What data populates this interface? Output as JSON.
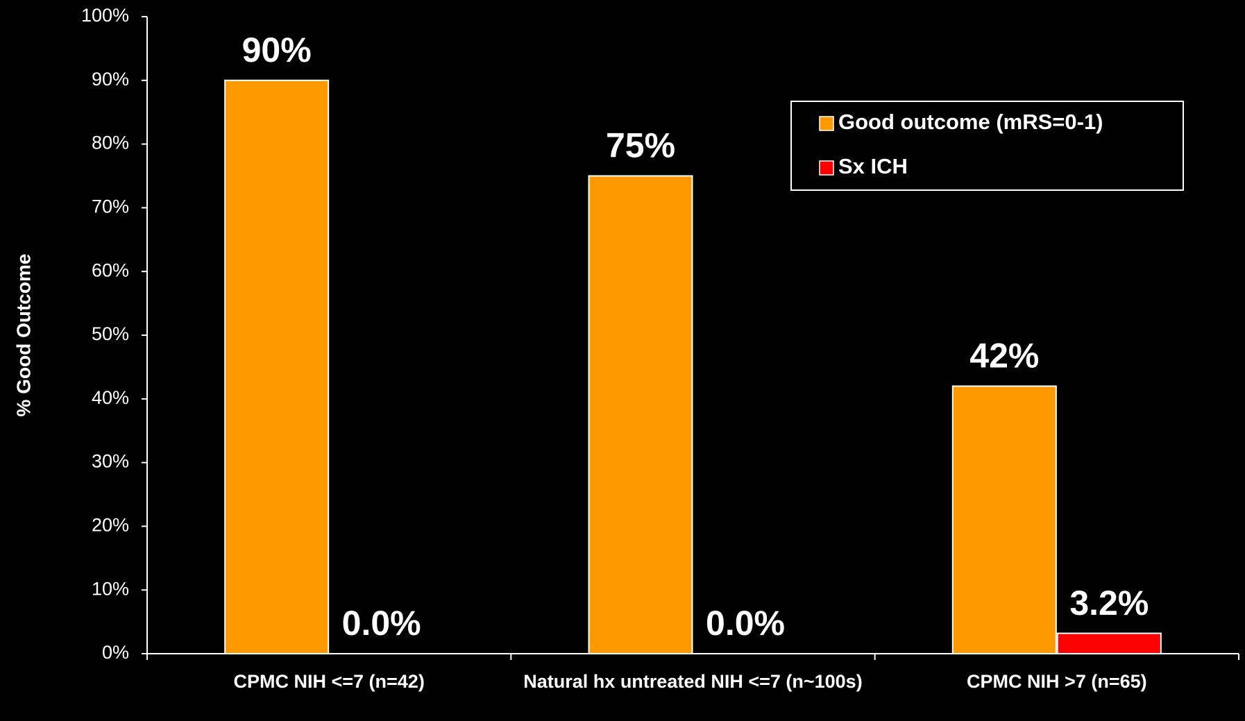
{
  "chart_data": {
    "type": "bar",
    "y_label": "% Good Outcome",
    "categories": [
      "CPMC NIH <=7 (n=42)",
      "Natural hx untreated NIH <=7 (n~100s)",
      "CPMC NIH >7 (n=65)"
    ],
    "series": [
      {
        "name": "Good outcome (mRS=0-1)",
        "color": "#FF9900",
        "values": [
          90,
          75,
          42
        ],
        "value_labels": [
          "90%",
          "75%",
          "42%"
        ]
      },
      {
        "name": "Sx ICH",
        "color": "#FF0000",
        "values": [
          0,
          0,
          3.2
        ],
        "value_labels": [
          "0.0%",
          "0.0%",
          "3.2%"
        ]
      }
    ],
    "ylim": [
      0,
      100
    ],
    "yticks": [
      {
        "value": 0,
        "label": "0%"
      },
      {
        "value": 10,
        "label": "10%"
      },
      {
        "value": 20,
        "label": "20%"
      },
      {
        "value": 30,
        "label": "30%"
      },
      {
        "value": 40,
        "label": "40%"
      },
      {
        "value": 50,
        "label": "50%"
      },
      {
        "value": 60,
        "label": "60%"
      },
      {
        "value": 70,
        "label": "70%"
      },
      {
        "value": 80,
        "label": "80%"
      },
      {
        "value": 90,
        "label": "90%"
      },
      {
        "value": 100,
        "label": "100%"
      }
    ],
    "legend": "upper right"
  }
}
